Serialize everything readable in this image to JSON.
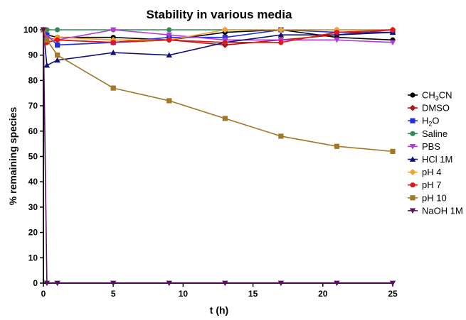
{
  "chart_data": {
    "type": "line",
    "title": "Stability in various media",
    "xlabel": "t (h)",
    "ylabel": "% remaining species",
    "xlim": [
      0,
      25
    ],
    "ylim": [
      0,
      100
    ],
    "xticks": [
      "0",
      "5",
      "10",
      "15",
      "20",
      "25"
    ],
    "yticks": [
      "0",
      "10",
      "20",
      "30",
      "40",
      "50",
      "60",
      "70",
      "80",
      "90",
      "100"
    ],
    "grid": false,
    "legend_position": "right",
    "x": [
      0,
      0.25,
      1,
      5,
      9,
      13,
      17,
      21,
      25
    ],
    "series": [
      {
        "name": "CH3CN",
        "label_main": "CH",
        "label_sub": "3",
        "label_tail": "CN",
        "color": "#000000",
        "marker": "circle",
        "values": [
          100,
          98,
          97,
          97,
          96,
          99,
          100,
          97,
          96
        ]
      },
      {
        "name": "DMSO",
        "label_main": "DMSO",
        "label_sub": "",
        "label_tail": "",
        "color": "#b01818",
        "marker": "diamond",
        "values": [
          100,
          97,
          96,
          95,
          96,
          94,
          96,
          98,
          100
        ]
      },
      {
        "name": "H2O",
        "label_main": "H",
        "label_sub": "2",
        "label_tail": "O",
        "color": "#1f2fe0",
        "marker": "square",
        "values": [
          100,
          98,
          94,
          95,
          97,
          97,
          100,
          99,
          99
        ]
      },
      {
        "name": "Saline",
        "label_main": "Saline",
        "label_sub": "",
        "label_tail": "",
        "color": "#2e8b57",
        "marker": "circle",
        "values": [
          100,
          100,
          100,
          100,
          100,
          100,
          100,
          100,
          100
        ]
      },
      {
        "name": "PBS",
        "label_main": "PBS",
        "label_sub": "",
        "label_tail": "",
        "color": "#b33bd1",
        "marker": "triangle-down",
        "values": [
          100,
          97,
          96,
          100,
          98,
          96,
          96,
          96,
          95
        ]
      },
      {
        "name": "HCl 1M",
        "label_main": "HCl 1M",
        "label_sub": "",
        "label_tail": "",
        "color": "#101070",
        "marker": "triangle-up",
        "values": [
          100,
          86,
          88,
          91,
          90,
          95,
          98,
          98,
          99
        ]
      },
      {
        "name": "pH 4",
        "label_main": "pH 4",
        "label_sub": "",
        "label_tail": "",
        "color": "#f5a030",
        "marker": "diamond",
        "values": [
          100,
          95,
          97,
          96,
          96,
          100,
          100,
          100,
          100
        ]
      },
      {
        "name": "pH 7",
        "label_main": "pH 7",
        "label_sub": "",
        "label_tail": "",
        "color": "#e01818",
        "marker": "circle",
        "values": [
          100,
          95,
          96,
          95,
          96,
          95,
          95,
          99,
          100
        ]
      },
      {
        "name": "pH 10",
        "label_main": "pH 10",
        "label_sub": "",
        "label_tail": "",
        "color": "#a07828",
        "marker": "square",
        "values": [
          100,
          96,
          90,
          77,
          72,
          65,
          58,
          54,
          52
        ]
      },
      {
        "name": "NaOH 1M",
        "label_main": "NaOH 1M",
        "label_sub": "",
        "label_tail": "",
        "color": "#5a1060",
        "marker": "triangle-down",
        "values": [
          100,
          0,
          0,
          0,
          0,
          0,
          0,
          0,
          0
        ]
      }
    ]
  }
}
